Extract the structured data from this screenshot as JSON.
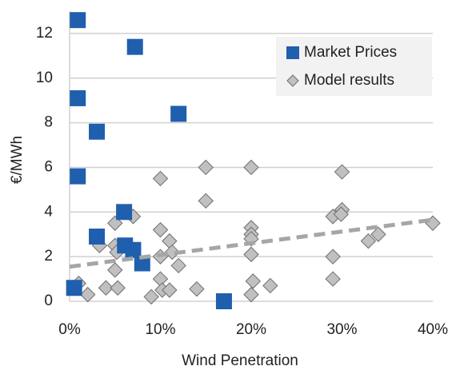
{
  "chart_data": {
    "type": "scatter",
    "xlabel": "Wind Penetration",
    "ylabel": "€/MWh",
    "xlim": [
      0,
      40
    ],
    "ylim": [
      0,
      13
    ],
    "xticks": [
      {
        "value": 0,
        "label": "0%"
      },
      {
        "value": 10,
        "label": "10%"
      },
      {
        "value": 20,
        "label": "20%"
      },
      {
        "value": 30,
        "label": "30%"
      },
      {
        "value": 40,
        "label": "40%"
      }
    ],
    "yticks": [
      0,
      2,
      4,
      6,
      8,
      10,
      12
    ],
    "grid": true,
    "legend": "upper right",
    "series": [
      {
        "name": "Market Prices",
        "color": "#1f5fad",
        "marker": "square",
        "x": [
          0.9,
          0.9,
          3,
          0.9,
          7.2,
          12,
          6,
          3,
          6.1,
          7,
          8,
          0.5,
          17
        ],
        "values": [
          12.6,
          9.1,
          7.6,
          5.6,
          11.4,
          8.4,
          4.0,
          2.9,
          2.5,
          2.3,
          1.7,
          0.6,
          0
        ]
      },
      {
        "name": "Model results",
        "color": "#c0c0c0",
        "marker": "diamond",
        "x": [
          1,
          2,
          3.3,
          4,
          5,
          5.2,
          5,
          5,
          5.3,
          7,
          9,
          10,
          10,
          10,
          10,
          10.2,
          11,
          11,
          11.3,
          12,
          15,
          15,
          14,
          20,
          20,
          20,
          20,
          20,
          20.2,
          20,
          22.1,
          29,
          29,
          29,
          30,
          30,
          29.9,
          32.9,
          34,
          40
        ],
        "values": [
          0.8,
          0.3,
          2.5,
          0.6,
          2.5,
          2.2,
          3.5,
          1.4,
          0.6,
          3.8,
          0.2,
          5.5,
          3.2,
          2.0,
          1.0,
          0.5,
          2.7,
          0.5,
          2.2,
          1.6,
          6.0,
          4.5,
          0.55,
          6.0,
          3.3,
          3.0,
          2.8,
          2.1,
          0.9,
          0.3,
          0.7,
          3.8,
          2.0,
          1.0,
          5.8,
          4.1,
          3.9,
          2.7,
          3.0,
          3.5
        ]
      }
    ],
    "trend": {
      "color": "#a6a6a6",
      "x": [
        0,
        40
      ],
      "values": [
        1.55,
        3.65
      ]
    }
  }
}
